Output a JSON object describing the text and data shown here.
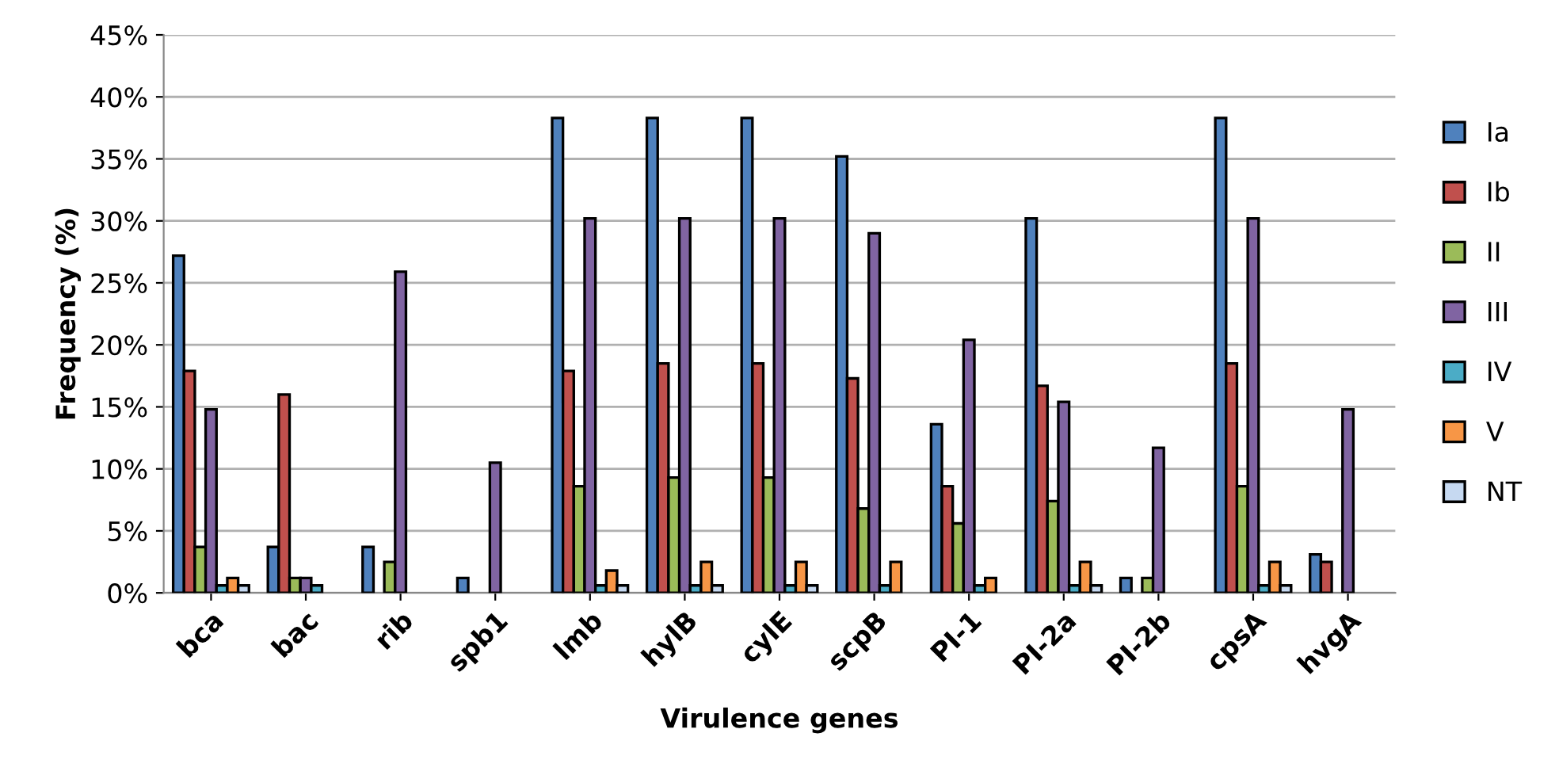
{
  "chart_data": {
    "type": "bar",
    "xlabel": "Virulence genes",
    "ylabel": "Frequency (%)",
    "categories": [
      "bca",
      "bac",
      "rib",
      "spb1",
      "lmb",
      "hylB",
      "cylE",
      "scpB",
      "PI-1",
      "PI-2a",
      "PI-2b",
      "cpsA",
      "hvgA"
    ],
    "series": [
      {
        "name": "Ia",
        "color": "#4f81bd",
        "values": [
          27.2,
          3.7,
          3.7,
          1.2,
          38.3,
          38.3,
          38.3,
          35.2,
          13.6,
          30.2,
          1.2,
          38.3,
          3.1
        ]
      },
      {
        "name": "Ib",
        "color": "#c0504d",
        "values": [
          17.9,
          16.0,
          null,
          null,
          17.9,
          18.5,
          18.5,
          17.3,
          8.6,
          16.7,
          null,
          18.5,
          2.5
        ]
      },
      {
        "name": "II",
        "color": "#9bbb59",
        "values": [
          3.7,
          1.2,
          2.5,
          null,
          8.6,
          9.3,
          9.3,
          6.8,
          5.6,
          7.4,
          1.2,
          8.6,
          null
        ]
      },
      {
        "name": "III",
        "color": "#8064a2",
        "values": [
          14.8,
          1.2,
          25.9,
          10.5,
          30.2,
          30.2,
          30.2,
          29.0,
          20.4,
          15.4,
          11.7,
          30.2,
          14.8
        ]
      },
      {
        "name": "IV",
        "color": "#4bacc6",
        "values": [
          0.6,
          0.6,
          null,
          null,
          0.6,
          0.6,
          0.6,
          0.6,
          0.6,
          0.6,
          null,
          0.6,
          null
        ]
      },
      {
        "name": "V",
        "color": "#f79646",
        "values": [
          1.2,
          null,
          null,
          null,
          1.8,
          2.5,
          2.5,
          2.5,
          1.2,
          2.5,
          null,
          2.5,
          null
        ]
      },
      {
        "name": "NT",
        "color": "#c6d9f1",
        "values": [
          0.6,
          null,
          null,
          null,
          0.6,
          0.6,
          0.6,
          null,
          null,
          0.6,
          null,
          0.6,
          null
        ]
      }
    ],
    "ylim": [
      0,
      45
    ],
    "yticks": [
      {
        "value": 0,
        "label": "0%"
      },
      {
        "value": 5,
        "label": "5%"
      },
      {
        "value": 10,
        "label": "10%"
      },
      {
        "value": 15,
        "label": "15%"
      },
      {
        "value": 20,
        "label": "20%"
      },
      {
        "value": 25,
        "label": "25%"
      },
      {
        "value": 30,
        "label": "30%"
      },
      {
        "value": 35,
        "label": "35%"
      },
      {
        "value": 40,
        "label": "40%"
      },
      {
        "value": 45,
        "label": "45%"
      }
    ],
    "grid": "y",
    "legend": "right"
  }
}
